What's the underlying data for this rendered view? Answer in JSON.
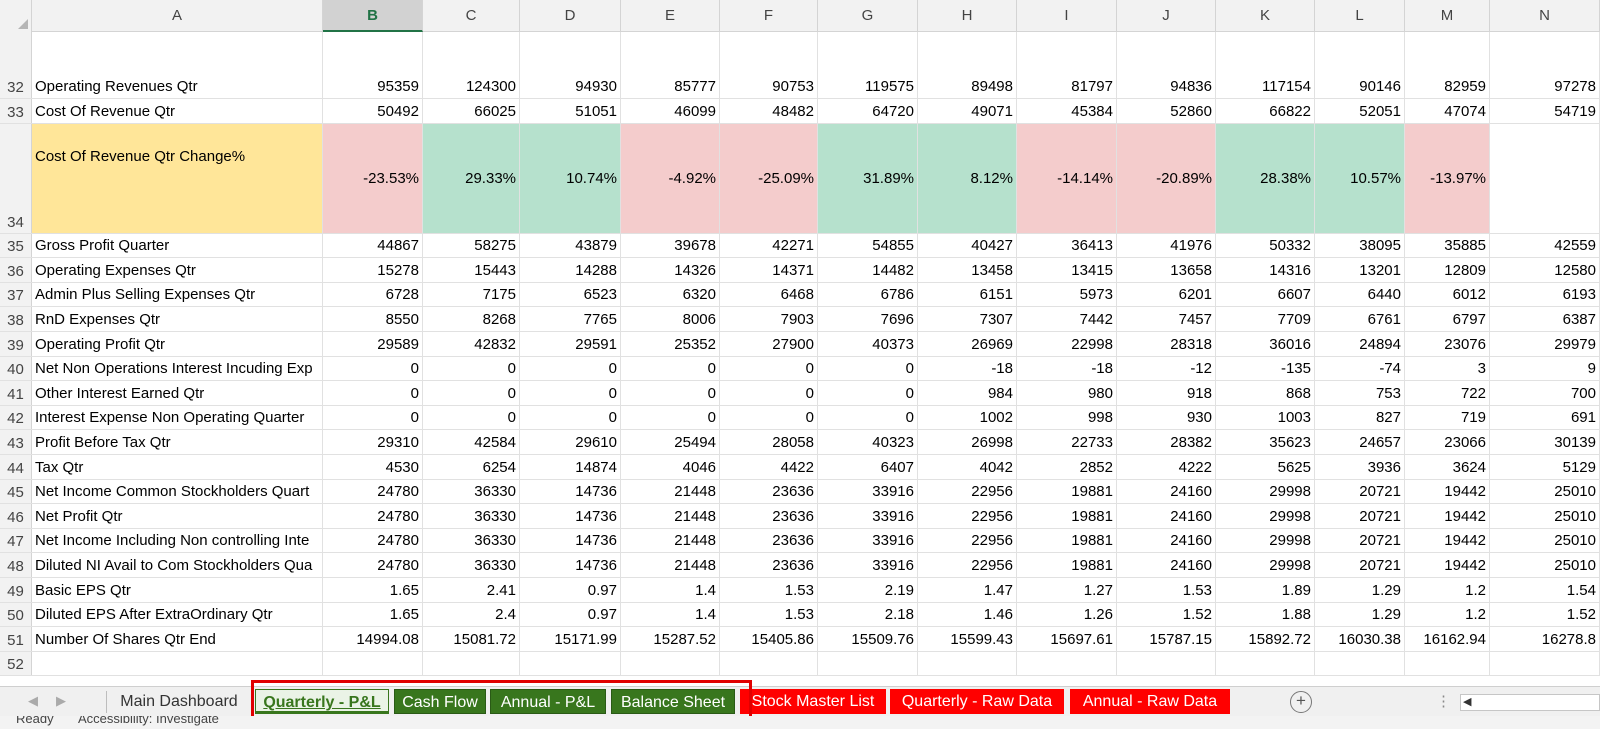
{
  "columns": [
    "A",
    "B",
    "C",
    "D",
    "E",
    "F",
    "G",
    "H",
    "I",
    "J",
    "K",
    "L",
    "M",
    "N"
  ],
  "selected_column": "B",
  "rows": [
    {
      "num": "32",
      "label": "Operating Revenues Qtr",
      "values": [
        "95359",
        "124300",
        "94930",
        "85777",
        "90753",
        "119575",
        "89498",
        "81797",
        "94836",
        "117154",
        "90146",
        "82959",
        "97278"
      ]
    },
    {
      "num": "33",
      "label": "Cost Of Revenue Qtr",
      "values": [
        "50492",
        "66025",
        "51051",
        "46099",
        "48482",
        "64720",
        "49071",
        "45384",
        "52860",
        "66822",
        "52051",
        "47074",
        "54719"
      ]
    },
    {
      "num": "34",
      "label": "Cost Of Revenue Qtr Change%",
      "values": [
        "-23.53%",
        "29.33%",
        "10.74%",
        "-4.92%",
        "-25.09%",
        "31.89%",
        "8.12%",
        "-14.14%",
        "-20.89%",
        "28.38%",
        "10.57%",
        "-13.97%",
        ""
      ],
      "label_color": "#ffe699",
      "value_colors": [
        "red",
        "green",
        "green",
        "red",
        "red",
        "green",
        "green",
        "red",
        "red",
        "green",
        "green",
        "red",
        ""
      ]
    },
    {
      "num": "35",
      "label": "Gross Profit Quarter",
      "values": [
        "44867",
        "58275",
        "43879",
        "39678",
        "42271",
        "54855",
        "40427",
        "36413",
        "41976",
        "50332",
        "38095",
        "35885",
        "42559"
      ]
    },
    {
      "num": "36",
      "label": "Operating Expenses Qtr",
      "values": [
        "15278",
        "15443",
        "14288",
        "14326",
        "14371",
        "14482",
        "13458",
        "13415",
        "13658",
        "14316",
        "13201",
        "12809",
        "12580"
      ]
    },
    {
      "num": "37",
      "label": "Admin Plus Selling Expenses Qtr",
      "values": [
        "6728",
        "7175",
        "6523",
        "6320",
        "6468",
        "6786",
        "6151",
        "5973",
        "6201",
        "6607",
        "6440",
        "6012",
        "6193"
      ]
    },
    {
      "num": "38",
      "label": "RnD Expenses Qtr",
      "values": [
        "8550",
        "8268",
        "7765",
        "8006",
        "7903",
        "7696",
        "7307",
        "7442",
        "7457",
        "7709",
        "6761",
        "6797",
        "6387"
      ]
    },
    {
      "num": "39",
      "label": "Operating Profit Qtr",
      "values": [
        "29589",
        "42832",
        "29591",
        "25352",
        "27900",
        "40373",
        "26969",
        "22998",
        "28318",
        "36016",
        "24894",
        "23076",
        "29979"
      ]
    },
    {
      "num": "40",
      "label": "Net Non Operations Interest Incuding Exp",
      "values": [
        "0",
        "0",
        "0",
        "0",
        "0",
        "0",
        "-18",
        "-18",
        "-12",
        "-135",
        "-74",
        "3",
        "9"
      ]
    },
    {
      "num": "41",
      "label": "Other Interest Earned Qtr",
      "values": [
        "0",
        "0",
        "0",
        "0",
        "0",
        "0",
        "984",
        "980",
        "918",
        "868",
        "753",
        "722",
        "700"
      ]
    },
    {
      "num": "42",
      "label": "Interest Expense Non Operating Quarter",
      "values": [
        "0",
        "0",
        "0",
        "0",
        "0",
        "0",
        "1002",
        "998",
        "930",
        "1003",
        "827",
        "719",
        "691"
      ]
    },
    {
      "num": "43",
      "label": "Profit Before Tax Qtr",
      "values": [
        "29310",
        "42584",
        "29610",
        "25494",
        "28058",
        "40323",
        "26998",
        "22733",
        "28382",
        "35623",
        "24657",
        "23066",
        "30139"
      ]
    },
    {
      "num": "44",
      "label": "Tax Qtr",
      "values": [
        "4530",
        "6254",
        "14874",
        "4046",
        "4422",
        "6407",
        "4042",
        "2852",
        "4222",
        "5625",
        "3936",
        "3624",
        "5129"
      ]
    },
    {
      "num": "45",
      "label": "Net Income Common Stockholders Quart",
      "values": [
        "24780",
        "36330",
        "14736",
        "21448",
        "23636",
        "33916",
        "22956",
        "19881",
        "24160",
        "29998",
        "20721",
        "19442",
        "25010"
      ]
    },
    {
      "num": "46",
      "label": "Net Profit Qtr",
      "values": [
        "24780",
        "36330",
        "14736",
        "21448",
        "23636",
        "33916",
        "22956",
        "19881",
        "24160",
        "29998",
        "20721",
        "19442",
        "25010"
      ]
    },
    {
      "num": "47",
      "label": "Net Income Including Non controlling Inte",
      "values": [
        "24780",
        "36330",
        "14736",
        "21448",
        "23636",
        "33916",
        "22956",
        "19881",
        "24160",
        "29998",
        "20721",
        "19442",
        "25010"
      ]
    },
    {
      "num": "48",
      "label": "Diluted NI Avail to Com Stockholders Qua",
      "values": [
        "24780",
        "36330",
        "14736",
        "21448",
        "23636",
        "33916",
        "22956",
        "19881",
        "24160",
        "29998",
        "20721",
        "19442",
        "25010"
      ]
    },
    {
      "num": "49",
      "label": "Basic EPS Qtr",
      "values": [
        "1.65",
        "2.41",
        "0.97",
        "1.4",
        "1.53",
        "2.19",
        "1.47",
        "1.27",
        "1.53",
        "1.89",
        "1.29",
        "1.2",
        "1.54"
      ]
    },
    {
      "num": "50",
      "label": "Diluted EPS After ExtraOrdinary Qtr",
      "values": [
        "1.65",
        "2.4",
        "0.97",
        "1.4",
        "1.53",
        "2.18",
        "1.46",
        "1.26",
        "1.52",
        "1.88",
        "1.29",
        "1.2",
        "1.52"
      ]
    },
    {
      "num": "51",
      "label": "Number Of Shares Qtr End",
      "values": [
        "14994.08",
        "15081.72",
        "15171.99",
        "15287.52",
        "15405.86",
        "15509.76",
        "15599.43",
        "15697.61",
        "15787.15",
        "15892.72",
        "16030.38",
        "16162.94",
        "16278.8"
      ]
    },
    {
      "num": "52",
      "label": "",
      "values": [
        "",
        "",
        "",
        "",
        "",
        "",
        "",
        "",
        "",
        "",
        "",
        "",
        ""
      ]
    }
  ],
  "sheet_tabs": [
    {
      "label": "Main Dashboard",
      "style": "plain"
    },
    {
      "label": "Quarterly - P&L",
      "style": "green",
      "active": true
    },
    {
      "label": "Cash Flow",
      "style": "green"
    },
    {
      "label": "Annual - P&L",
      "style": "green"
    },
    {
      "label": "Balance Sheet",
      "style": "green"
    },
    {
      "label": "Stock Master List",
      "style": "red"
    },
    {
      "label": "Quarterly - Raw Data",
      "style": "red"
    },
    {
      "label": "Annual - Raw Data",
      "style": "red"
    }
  ],
  "add_sheet_symbol": "+",
  "status": {
    "ready": "Ready",
    "accessibility": "Accessibility: Investigate"
  },
  "colors": {
    "green_tab": "#38761d",
    "red_tab": "#ff0000",
    "highlight": "#e00000",
    "negative_fill": "#f4cccc",
    "positive_fill": "#b6e1cd",
    "label_fill": "#ffe699"
  }
}
